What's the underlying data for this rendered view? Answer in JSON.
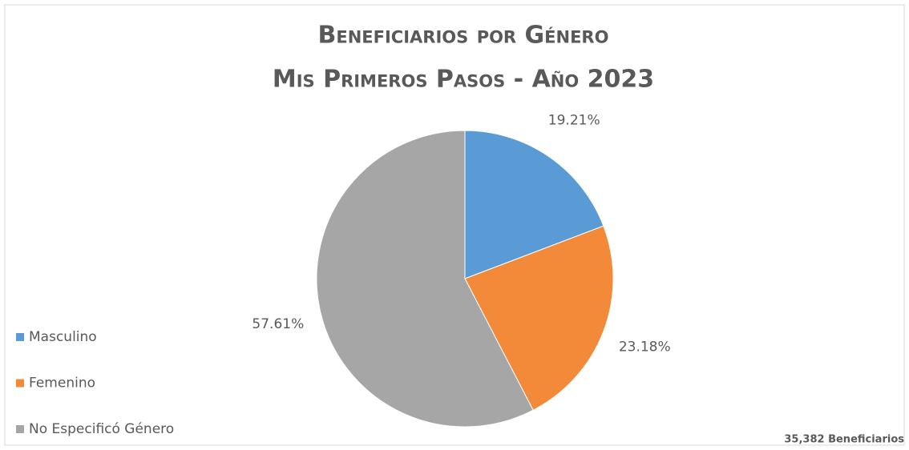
{
  "chart_data": {
    "type": "pie",
    "title": [
      "Beneficiarios por Género",
      "Mis Primeros Pasos - Año 2023"
    ],
    "categories": [
      "Masculino",
      "Femenino",
      "No Especificó Género"
    ],
    "values": [
      19.21,
      23.18,
      57.61
    ],
    "value_labels": [
      "19.21%",
      "23.18%",
      "57.61%"
    ],
    "colors": [
      "#5b9bd5",
      "#f28a3a",
      "#a6a6a6"
    ],
    "legend": "left",
    "annotation": "35,382 Beneficiarios"
  }
}
